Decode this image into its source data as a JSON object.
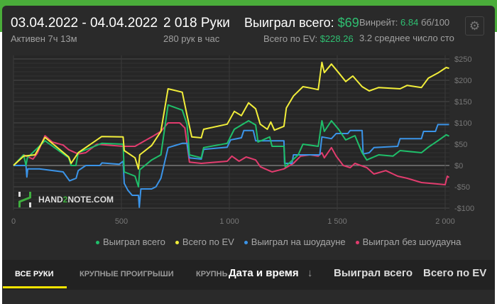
{
  "header": {
    "date_range": "03.04.2022 - 04.04.2022",
    "active": "Активен 7ч 13м",
    "hands": "2 018 Руки",
    "hands_rate": "280 рук в час",
    "won_label": "Выиграл всего:",
    "won_value": "$69",
    "ev_label": "Всего по EV:",
    "ev_value": "$228.26",
    "winrate_label": "Винрейт:",
    "winrate_value": "6.84",
    "winrate_unit": "бб/100",
    "avg_tables": "3.2 среднее число сто",
    "settings_icon": "gear-icon"
  },
  "logo": {
    "text_a": "HAND",
    "text_b": "2",
    "text_c": "NOTE.COM"
  },
  "chart_data": {
    "type": "line",
    "xlim": [
      0,
      2018
    ],
    "ylim": [
      -100,
      250
    ],
    "x_ticks": [
      0,
      500,
      1000,
      1500,
      2000
    ],
    "x_tick_labels": [
      "0",
      "500",
      "1 000",
      "1 500",
      "2 000"
    ],
    "y_ticks": [
      250,
      200,
      150,
      100,
      50,
      0,
      -50,
      -100
    ],
    "y_tick_labels": [
      "$250",
      "$200",
      "$150",
      "$100",
      "$50",
      "$0",
      "-$50",
      "-$100"
    ],
    "grid": true,
    "legend_position": "bottom",
    "series": [
      {
        "name": "Выиграл всего",
        "color": "#1fbf6a",
        "points": [
          [
            0,
            0
          ],
          [
            47,
            25
          ],
          [
            58,
            0
          ],
          [
            64,
            18
          ],
          [
            146,
            58
          ],
          [
            256,
            18
          ],
          [
            267,
            0
          ],
          [
            289,
            0
          ],
          [
            300,
            30
          ],
          [
            409,
            52
          ],
          [
            508,
            50
          ],
          [
            513,
            -15
          ],
          [
            563,
            -25
          ],
          [
            579,
            -50
          ],
          [
            585,
            -10
          ],
          [
            640,
            13
          ],
          [
            683,
            25
          ],
          [
            716,
            142
          ],
          [
            782,
            130
          ],
          [
            804,
            97
          ],
          [
            815,
            25
          ],
          [
            870,
            18
          ],
          [
            881,
            42
          ],
          [
            990,
            52
          ],
          [
            1023,
            85
          ],
          [
            1089,
            105
          ],
          [
            1122,
            95
          ],
          [
            1133,
            55
          ],
          [
            1187,
            67
          ],
          [
            1198,
            45
          ],
          [
            1253,
            45
          ],
          [
            1259,
            -3
          ],
          [
            1319,
            25
          ],
          [
            1341,
            50
          ],
          [
            1412,
            45
          ],
          [
            1429,
            105
          ],
          [
            1440,
            80
          ],
          [
            1473,
            105
          ],
          [
            1506,
            85
          ],
          [
            1539,
            60
          ],
          [
            1582,
            70
          ],
          [
            1615,
            30
          ],
          [
            1637,
            13
          ],
          [
            1692,
            25
          ],
          [
            1758,
            22
          ],
          [
            1791,
            35
          ],
          [
            1890,
            30
          ],
          [
            1922,
            43
          ],
          [
            1966,
            58
          ],
          [
            2005,
            72
          ],
          [
            2018,
            69
          ]
        ]
      },
      {
        "name": "Всего по EV",
        "color": "#f2ee3a",
        "points": [
          [
            0,
            0
          ],
          [
            47,
            22
          ],
          [
            100,
            25
          ],
          [
            146,
            66
          ],
          [
            256,
            20
          ],
          [
            267,
            5
          ],
          [
            300,
            30
          ],
          [
            409,
            68
          ],
          [
            508,
            67
          ],
          [
            513,
            35
          ],
          [
            563,
            18
          ],
          [
            579,
            -8
          ],
          [
            585,
            25
          ],
          [
            640,
            47
          ],
          [
            683,
            80
          ],
          [
            716,
            180
          ],
          [
            782,
            172
          ],
          [
            804,
            118
          ],
          [
            826,
            67
          ],
          [
            870,
            65
          ],
          [
            881,
            85
          ],
          [
            990,
            97
          ],
          [
            1023,
            127
          ],
          [
            1056,
            117
          ],
          [
            1089,
            147
          ],
          [
            1122,
            133
          ],
          [
            1143,
            97
          ],
          [
            1176,
            85
          ],
          [
            1192,
            102
          ],
          [
            1209,
            83
          ],
          [
            1253,
            92
          ],
          [
            1264,
            135
          ],
          [
            1297,
            163
          ],
          [
            1341,
            185
          ],
          [
            1374,
            182
          ],
          [
            1412,
            178
          ],
          [
            1429,
            242
          ],
          [
            1440,
            218
          ],
          [
            1473,
            238
          ],
          [
            1506,
            218
          ],
          [
            1539,
            197
          ],
          [
            1572,
            210
          ],
          [
            1615,
            185
          ],
          [
            1648,
            175
          ],
          [
            1692,
            183
          ],
          [
            1791,
            180
          ],
          [
            1824,
            188
          ],
          [
            1890,
            183
          ],
          [
            1922,
            205
          ],
          [
            1966,
            217
          ],
          [
            2005,
            230
          ],
          [
            2018,
            228
          ]
        ]
      },
      {
        "name": "Выиграл на шоудауне",
        "color": "#3b94e8",
        "points": [
          [
            0,
            0
          ],
          [
            58,
            0
          ],
          [
            62,
            -27
          ],
          [
            66,
            -8
          ],
          [
            120,
            -8
          ],
          [
            230,
            -15
          ],
          [
            260,
            -36
          ],
          [
            290,
            -30
          ],
          [
            300,
            -12
          ],
          [
            335,
            0
          ],
          [
            400,
            0
          ],
          [
            410,
            6
          ],
          [
            490,
            3
          ],
          [
            508,
            10
          ],
          [
            513,
            -42
          ],
          [
            530,
            -58
          ],
          [
            550,
            -70
          ],
          [
            579,
            -70
          ],
          [
            583,
            -98
          ],
          [
            590,
            -55
          ],
          [
            640,
            -55
          ],
          [
            660,
            -50
          ],
          [
            683,
            -30
          ],
          [
            716,
            42
          ],
          [
            782,
            52
          ],
          [
            804,
            52
          ],
          [
            815,
            18
          ],
          [
            870,
            15
          ],
          [
            881,
            38
          ],
          [
            990,
            43
          ],
          [
            1006,
            60
          ],
          [
            1056,
            65
          ],
          [
            1067,
            82
          ],
          [
            1111,
            82
          ],
          [
            1122,
            58
          ],
          [
            1253,
            58
          ],
          [
            1256,
            5
          ],
          [
            1290,
            5
          ],
          [
            1297,
            25
          ],
          [
            1419,
            25
          ],
          [
            1429,
            67
          ],
          [
            1473,
            63
          ],
          [
            1495,
            75
          ],
          [
            1549,
            75
          ],
          [
            1560,
            82
          ],
          [
            1615,
            82
          ],
          [
            1620,
            27
          ],
          [
            1648,
            30
          ],
          [
            1670,
            42
          ],
          [
            1780,
            45
          ],
          [
            1791,
            63
          ],
          [
            1890,
            63
          ],
          [
            1900,
            80
          ],
          [
            1955,
            80
          ],
          [
            1966,
            96
          ],
          [
            2018,
            96
          ]
        ]
      },
      {
        "name": "Выиграл без шоудауна",
        "color": "#e23c6e",
        "points": [
          [
            0,
            0
          ],
          [
            47,
            25
          ],
          [
            90,
            15
          ],
          [
            110,
            28
          ],
          [
            146,
            70
          ],
          [
            180,
            55
          ],
          [
            230,
            48
          ],
          [
            256,
            37
          ],
          [
            300,
            27
          ],
          [
            335,
            30
          ],
          [
            387,
            50
          ],
          [
            508,
            45
          ],
          [
            563,
            45
          ],
          [
            605,
            57
          ],
          [
            640,
            67
          ],
          [
            683,
            80
          ],
          [
            716,
            100
          ],
          [
            770,
            100
          ],
          [
            794,
            88
          ],
          [
            815,
            8
          ],
          [
            870,
            5
          ],
          [
            990,
            10
          ],
          [
            1012,
            22
          ],
          [
            1045,
            10
          ],
          [
            1078,
            20
          ],
          [
            1122,
            13
          ],
          [
            1144,
            -3
          ],
          [
            1198,
            -15
          ],
          [
            1253,
            -8
          ],
          [
            1297,
            5
          ],
          [
            1330,
            22
          ],
          [
            1374,
            25
          ],
          [
            1412,
            22
          ],
          [
            1429,
            30
          ],
          [
            1440,
            18
          ],
          [
            1473,
            42
          ],
          [
            1495,
            22
          ],
          [
            1528,
            0
          ],
          [
            1560,
            -5
          ],
          [
            1582,
            5
          ],
          [
            1637,
            -5
          ],
          [
            1670,
            -20
          ],
          [
            1725,
            -12
          ],
          [
            1780,
            -25
          ],
          [
            1824,
            -30
          ],
          [
            1890,
            -40
          ],
          [
            1955,
            -43
          ],
          [
            2000,
            -45
          ],
          [
            2010,
            -25
          ],
          [
            2018,
            -28
          ]
        ]
      }
    ]
  },
  "tabs": [
    {
      "label": "ВСЕ РУКИ",
      "active": true
    },
    {
      "label": "КРУПНЫЕ ПРОИГРЫШИ"
    },
    {
      "label": "КРУПНЬ"
    }
  ],
  "columns": [
    {
      "label": "Дата и время",
      "sort": "↓"
    },
    {
      "label": "Выиграл всего"
    },
    {
      "label": "Всего по EV"
    }
  ]
}
